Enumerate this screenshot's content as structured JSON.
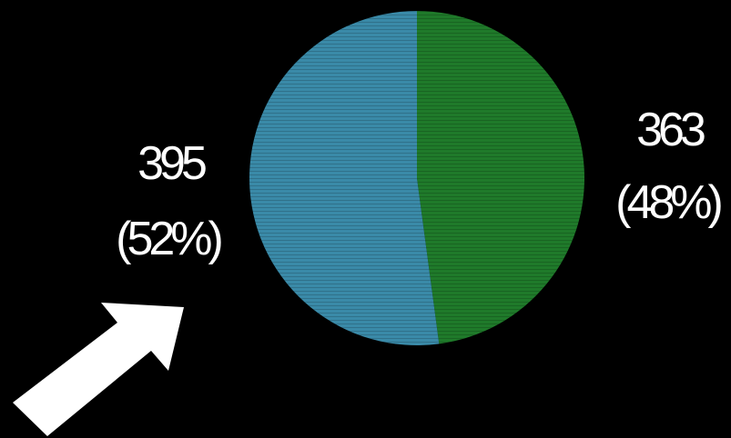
{
  "chart_data": {
    "type": "pie",
    "title": "",
    "slices": [
      {
        "value": 363,
        "percent_label": "(48%)",
        "color": "#1f7a2a"
      },
      {
        "value": 395,
        "percent_label": "(52%)",
        "color": "#3a8aa8"
      }
    ],
    "start_angle_deg": 0,
    "direction": "clockwise",
    "annotations": [
      {
        "type": "arrow",
        "color": "#ffffff",
        "points_to": "slice-2-label"
      }
    ],
    "legend": "none",
    "grid": false
  },
  "colors": {
    "background": "#000000",
    "text": "#ffffff"
  }
}
